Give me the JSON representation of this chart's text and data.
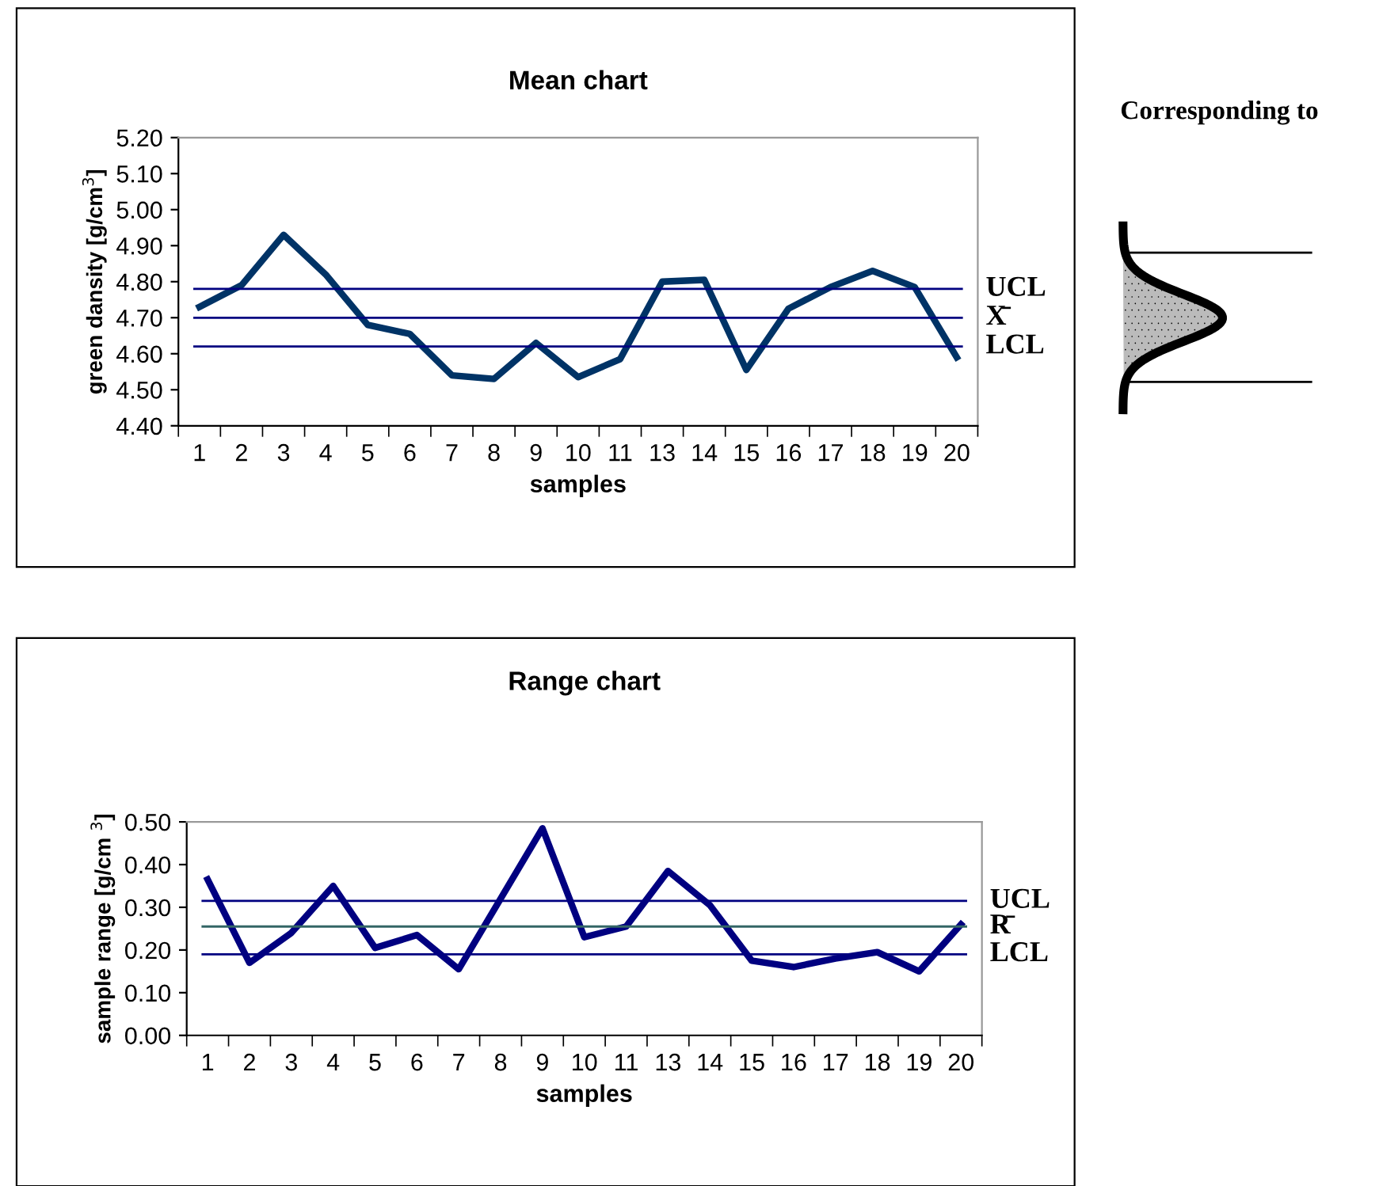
{
  "chart_data": [
    {
      "type": "line",
      "title": "Mean chart",
      "xlabel": "samples",
      "ylabel": "green dansity [g/cm$^{3}$]",
      "categories": [
        "1",
        "2",
        "3",
        "4",
        "5",
        "6",
        "7",
        "8",
        "9",
        "10",
        "11",
        "13",
        "14",
        "15",
        "16",
        "17",
        "18",
        "19",
        "20"
      ],
      "series": [
        {
          "color": "#003366",
          "values": [
            4.73,
            4.79,
            4.93,
            4.82,
            4.68,
            4.655,
            4.54,
            4.53,
            4.63,
            4.535,
            4.585,
            4.8,
            4.805,
            4.555,
            4.725,
            4.785,
            4.83,
            4.785,
            4.59
          ]
        }
      ],
      "ylim": [
        4.4,
        5.2
      ],
      "yticks": [
        {
          "value": 4.4,
          "label": "4.40"
        },
        {
          "value": 4.5,
          "label": "4.50"
        },
        {
          "value": 4.6,
          "label": "4.60"
        },
        {
          "value": 4.7,
          "label": "4.70"
        },
        {
          "value": 4.8,
          "label": "4.80"
        },
        {
          "value": 4.9,
          "label": "4.90"
        },
        {
          "value": 5.0,
          "label": "5.00"
        },
        {
          "value": 5.1,
          "label": "5.10"
        },
        {
          "value": 5.2,
          "label": "5.20"
        }
      ],
      "ref_lines": [
        {
          "axis": "y",
          "value": 4.78,
          "label": "UCL",
          "color": "#000080"
        },
        {
          "axis": "y",
          "value": 4.7,
          "label": "X̄",
          "color": "#000080"
        },
        {
          "axis": "y",
          "value": 4.62,
          "label": "LCL",
          "color": "#000080"
        }
      ],
      "annotations": [
        "Corresponding to"
      ],
      "grid": false,
      "legend": false,
      "marker": "none",
      "line_style": "solid"
    },
    {
      "type": "line",
      "title": "Range chart",
      "xlabel": "samples",
      "ylabel": "sample range [g/cm $^{3}$]",
      "categories": [
        "1",
        "2",
        "3",
        "4",
        "5",
        "6",
        "7",
        "8",
        "9",
        "10",
        "11",
        "13",
        "14",
        "15",
        "16",
        "17",
        "18",
        "19",
        "20"
      ],
      "series": [
        {
          "color": "#000080",
          "values": [
            0.365,
            0.17,
            0.24,
            0.35,
            0.205,
            0.235,
            0.155,
            0.32,
            0.485,
            0.23,
            0.255,
            0.385,
            0.305,
            0.175,
            0.16,
            0.18,
            0.195,
            0.15,
            0.26
          ]
        }
      ],
      "ylim": [
        0,
        0.5
      ],
      "yticks": [
        {
          "value": 0,
          "label": "0.00"
        },
        {
          "value": 0.1,
          "label": "0.10"
        },
        {
          "value": 0.2,
          "label": "0.20"
        },
        {
          "value": 0.3,
          "label": "0.30"
        },
        {
          "value": 0.4,
          "label": "0.40"
        },
        {
          "value": 0.5,
          "label": "0.50"
        }
      ],
      "ref_lines": [
        {
          "axis": "y",
          "value": 0.315,
          "label": "UCL",
          "color": "#000080"
        },
        {
          "axis": "y",
          "value": 0.255,
          "label": "R̄",
          "color": "#336666"
        },
        {
          "axis": "y",
          "value": 0.19,
          "label": "LCL",
          "color": "#000080"
        }
      ],
      "grid": false,
      "legend": false,
      "marker": "none",
      "line_style": "solid"
    }
  ]
}
